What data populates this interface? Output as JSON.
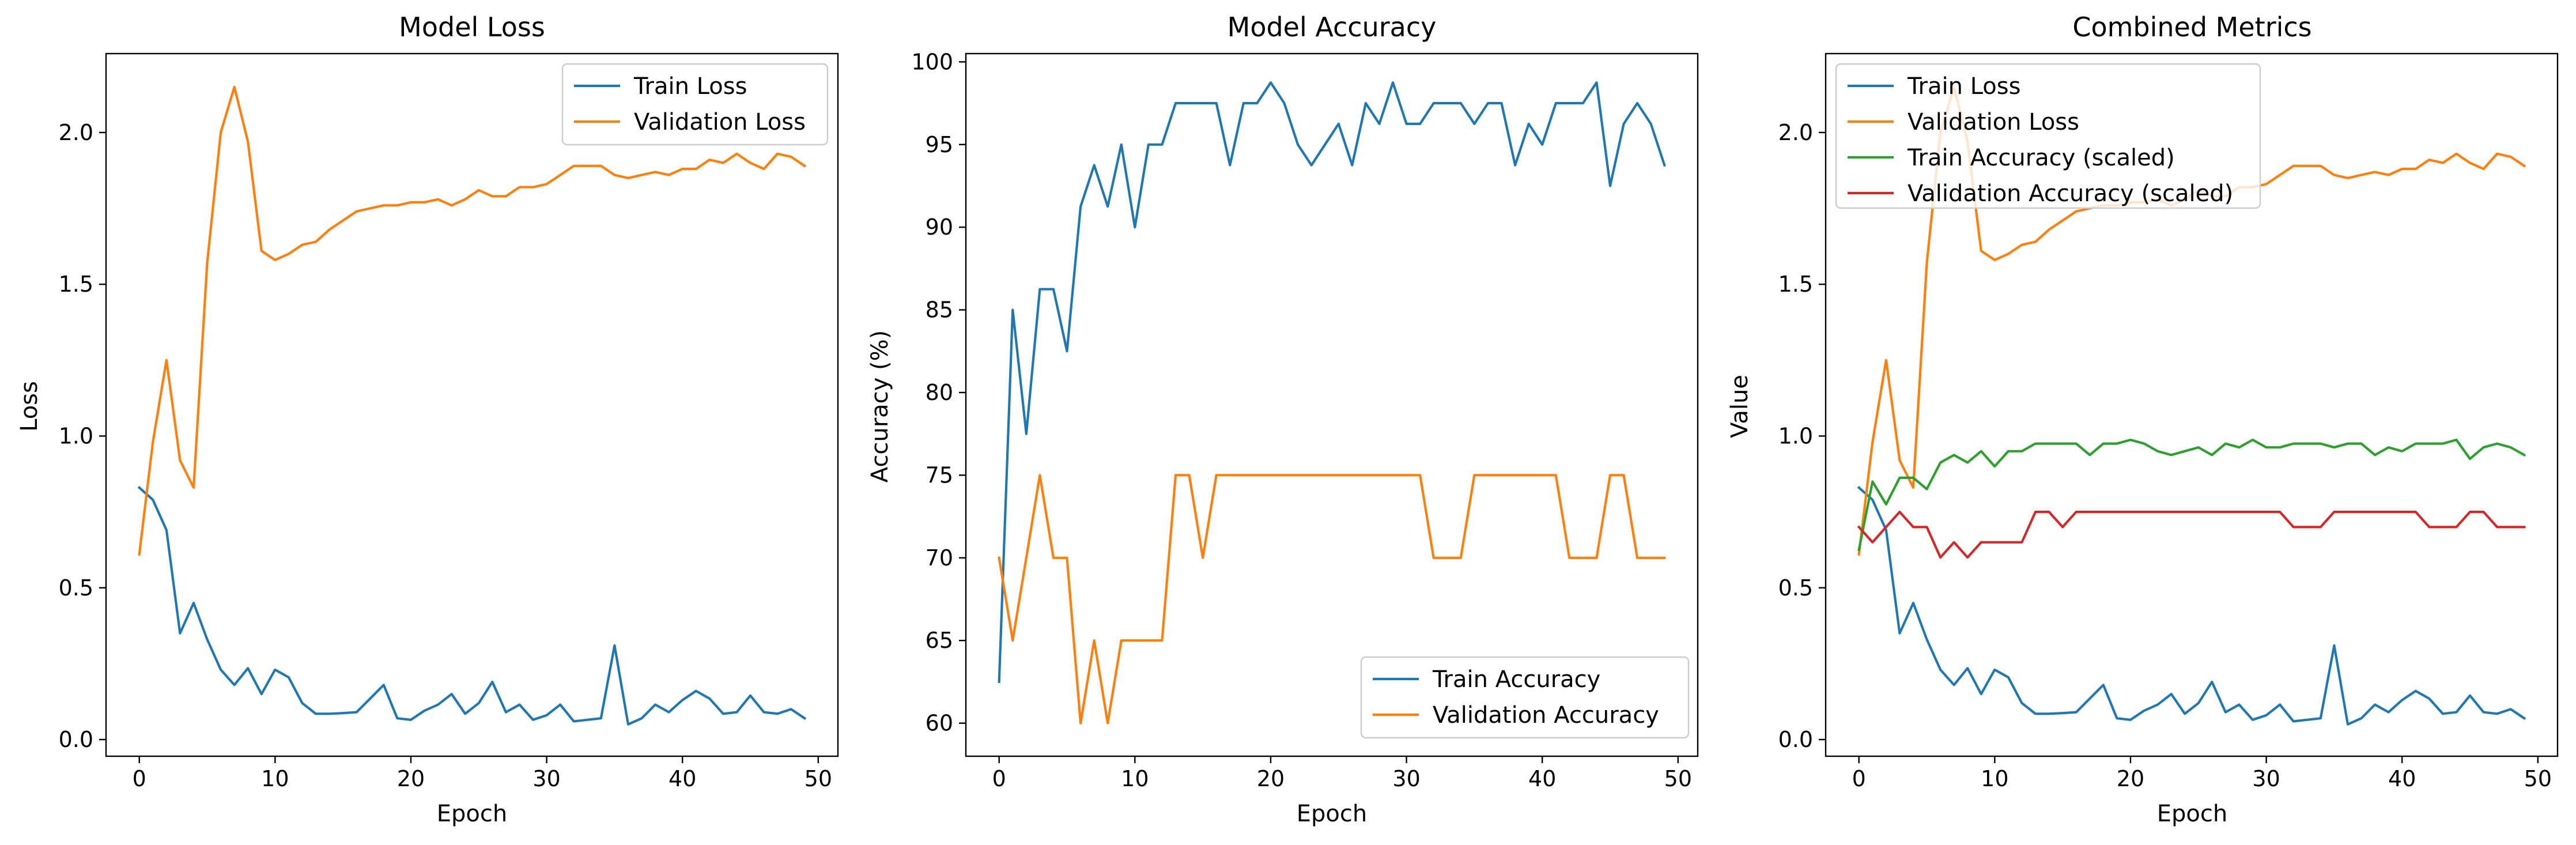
{
  "colors": {
    "train_loss": "#1f77b4",
    "val_loss": "#ff7f0e",
    "train_acc_scaled": "#2ca02c",
    "val_acc_scaled": "#d62728",
    "axis": "#000000"
  },
  "chart_data": [
    {
      "type": "line",
      "title": "Model Loss",
      "xlabel": "Epoch",
      "ylabel": "Loss",
      "xlim": [
        -2.45,
        51.45
      ],
      "ylim": [
        -0.055,
        2.26
      ],
      "xticks": [
        0,
        10,
        20,
        30,
        40,
        50
      ],
      "yticks": [
        0.0,
        0.5,
        1.0,
        1.5,
        2.0
      ],
      "ytick_labels": [
        "0.0",
        "0.5",
        "1.0",
        "1.5",
        "2.0"
      ],
      "legend": "top-right",
      "grid": false,
      "series": [
        {
          "name": "Train Loss",
          "color_key": "train_loss",
          "values": [
            0.83,
            0.79,
            0.69,
            0.35,
            0.45,
            0.33,
            0.23,
            0.18,
            0.235,
            0.15,
            0.23,
            0.205,
            0.12,
            0.085,
            0.085,
            0.087,
            0.09,
            0.135,
            0.18,
            0.07,
            0.065,
            0.095,
            0.115,
            0.15,
            0.085,
            0.12,
            0.19,
            0.09,
            0.115,
            0.065,
            0.08,
            0.115,
            0.06,
            0.065,
            0.07,
            0.31,
            0.05,
            0.07,
            0.115,
            0.09,
            0.13,
            0.16,
            0.135,
            0.085,
            0.09,
            0.145,
            0.09,
            0.085,
            0.1,
            0.07
          ]
        },
        {
          "name": "Validation Loss",
          "color_key": "val_loss",
          "values": [
            0.61,
            0.98,
            1.25,
            0.92,
            0.83,
            1.57,
            2.0,
            2.15,
            1.97,
            1.61,
            1.58,
            1.6,
            1.63,
            1.64,
            1.68,
            1.71,
            1.74,
            1.75,
            1.76,
            1.76,
            1.77,
            1.77,
            1.78,
            1.76,
            1.78,
            1.81,
            1.79,
            1.79,
            1.82,
            1.82,
            1.83,
            1.86,
            1.89,
            1.89,
            1.89,
            1.86,
            1.85,
            1.86,
            1.87,
            1.86,
            1.88,
            1.88,
            1.91,
            1.9,
            1.93,
            1.9,
            1.88,
            1.93,
            1.92,
            1.89
          ]
        }
      ]
    },
    {
      "type": "line",
      "title": "Model Accuracy",
      "xlabel": "Epoch",
      "ylabel": "Accuracy (%)",
      "xlim": [
        -2.45,
        51.45
      ],
      "ylim": [
        58.0,
        100.5
      ],
      "xticks": [
        0,
        10,
        20,
        30,
        40,
        50
      ],
      "yticks": [
        60,
        65,
        70,
        75,
        80,
        85,
        90,
        95,
        100
      ],
      "ytick_labels": [
        "60",
        "65",
        "70",
        "75",
        "80",
        "85",
        "90",
        "95",
        "100"
      ],
      "legend": "bottom-right",
      "grid": false,
      "series": [
        {
          "name": "Train Accuracy",
          "color_key": "train_loss",
          "values": [
            62.5,
            85.0,
            77.5,
            86.25,
            86.25,
            82.5,
            91.25,
            93.75,
            91.25,
            95.0,
            90.0,
            95.0,
            95.0,
            97.5,
            97.5,
            97.5,
            97.5,
            93.75,
            97.5,
            97.5,
            98.75,
            97.5,
            95.0,
            93.75,
            95.0,
            96.25,
            93.75,
            97.5,
            96.25,
            98.75,
            96.25,
            96.25,
            97.5,
            97.5,
            97.5,
            96.25,
            97.5,
            97.5,
            93.75,
            96.25,
            95.0,
            97.5,
            97.5,
            97.5,
            98.75,
            92.5,
            96.25,
            97.5,
            96.25,
            93.75
          ]
        },
        {
          "name": "Validation Accuracy",
          "color_key": "val_loss",
          "values": [
            70,
            65,
            70,
            75,
            70,
            70,
            60,
            65,
            60,
            65,
            65,
            65,
            65,
            75,
            75,
            70,
            75,
            75,
            75,
            75,
            75,
            75,
            75,
            75,
            75,
            75,
            75,
            75,
            75,
            75,
            75,
            75,
            70,
            70,
            70,
            75,
            75,
            75,
            75,
            75,
            75,
            75,
            70,
            70,
            70,
            75,
            75,
            70,
            70,
            70
          ]
        }
      ]
    },
    {
      "type": "line",
      "title": "Combined Metrics",
      "xlabel": "Epoch",
      "ylabel": "Value",
      "xlim": [
        -2.45,
        51.45
      ],
      "ylim": [
        -0.055,
        2.26
      ],
      "xticks": [
        0,
        10,
        20,
        30,
        40,
        50
      ],
      "yticks": [
        0.0,
        0.5,
        1.0,
        1.5,
        2.0
      ],
      "ytick_labels": [
        "0.0",
        "0.5",
        "1.0",
        "1.5",
        "2.0"
      ],
      "legend": "top-left",
      "grid": false,
      "series": [
        {
          "name": "Train Loss",
          "color_key": "train_loss",
          "values": [
            0.83,
            0.79,
            0.69,
            0.35,
            0.45,
            0.33,
            0.23,
            0.18,
            0.235,
            0.15,
            0.23,
            0.205,
            0.12,
            0.085,
            0.085,
            0.087,
            0.09,
            0.135,
            0.18,
            0.07,
            0.065,
            0.095,
            0.115,
            0.15,
            0.085,
            0.12,
            0.19,
            0.09,
            0.115,
            0.065,
            0.08,
            0.115,
            0.06,
            0.065,
            0.07,
            0.31,
            0.05,
            0.07,
            0.115,
            0.09,
            0.13,
            0.16,
            0.135,
            0.085,
            0.09,
            0.145,
            0.09,
            0.085,
            0.1,
            0.07
          ]
        },
        {
          "name": "Validation Loss",
          "color_key": "val_loss",
          "values": [
            0.61,
            0.98,
            1.25,
            0.92,
            0.83,
            1.57,
            2.0,
            2.15,
            1.97,
            1.61,
            1.58,
            1.6,
            1.63,
            1.64,
            1.68,
            1.71,
            1.74,
            1.75,
            1.76,
            1.76,
            1.77,
            1.77,
            1.78,
            1.76,
            1.78,
            1.81,
            1.79,
            1.79,
            1.82,
            1.82,
            1.83,
            1.86,
            1.89,
            1.89,
            1.89,
            1.86,
            1.85,
            1.86,
            1.87,
            1.86,
            1.88,
            1.88,
            1.91,
            1.9,
            1.93,
            1.9,
            1.88,
            1.93,
            1.92,
            1.89
          ]
        },
        {
          "name": "Train Accuracy (scaled)",
          "color_key": "train_acc_scaled",
          "values": [
            0.625,
            0.85,
            0.775,
            0.8625,
            0.8625,
            0.825,
            0.9125,
            0.9375,
            0.9125,
            0.95,
            0.9,
            0.95,
            0.95,
            0.975,
            0.975,
            0.975,
            0.975,
            0.9375,
            0.975,
            0.975,
            0.9875,
            0.975,
            0.95,
            0.9375,
            0.95,
            0.9625,
            0.9375,
            0.975,
            0.9625,
            0.9875,
            0.9625,
            0.9625,
            0.975,
            0.975,
            0.975,
            0.9625,
            0.975,
            0.975,
            0.9375,
            0.9625,
            0.95,
            0.975,
            0.975,
            0.975,
            0.9875,
            0.925,
            0.9625,
            0.975,
            0.9625,
            0.9375
          ]
        },
        {
          "name": "Validation Accuracy (scaled)",
          "color_key": "val_acc_scaled",
          "values": [
            0.7,
            0.65,
            0.7,
            0.75,
            0.7,
            0.7,
            0.6,
            0.65,
            0.6,
            0.65,
            0.65,
            0.65,
            0.65,
            0.75,
            0.75,
            0.7,
            0.75,
            0.75,
            0.75,
            0.75,
            0.75,
            0.75,
            0.75,
            0.75,
            0.75,
            0.75,
            0.75,
            0.75,
            0.75,
            0.75,
            0.75,
            0.75,
            0.7,
            0.7,
            0.7,
            0.75,
            0.75,
            0.75,
            0.75,
            0.75,
            0.75,
            0.75,
            0.7,
            0.7,
            0.7,
            0.75,
            0.75,
            0.7,
            0.7,
            0.7
          ]
        }
      ]
    }
  ]
}
